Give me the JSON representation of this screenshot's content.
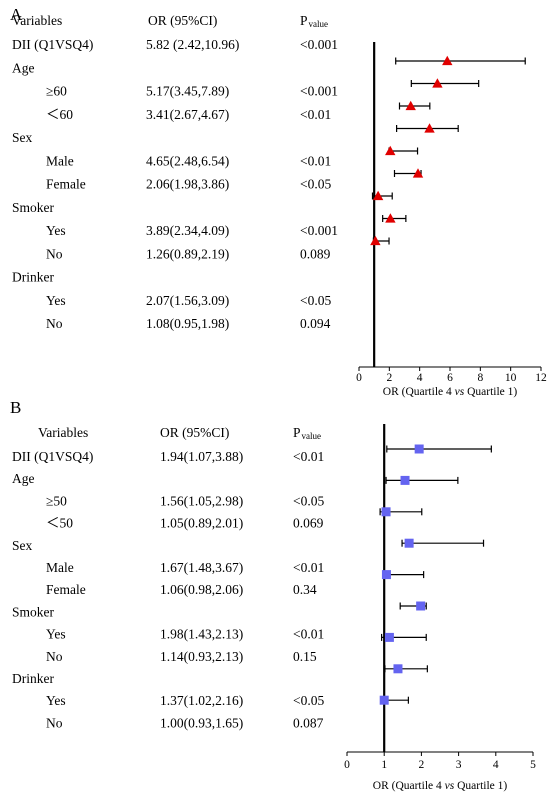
{
  "chart_data": [
    {
      "type": "forest",
      "panel_label": "A",
      "headers": {
        "variables": "Variables",
        "or": "OR (95%CI)",
        "p_main": "P",
        "p_sub": "value"
      },
      "xlabel": {
        "pre": "OR (Quartile 4 ",
        "vs": "vs",
        "post": " Quartile 1)"
      },
      "xlim": [
        0,
        12
      ],
      "xticks": [
        0,
        2,
        4,
        6,
        8,
        10,
        12
      ],
      "reference_line": 1,
      "marker": "triangle",
      "marker_color": "#e00000",
      "rows": [
        {
          "label": "DII (Q1VSQ4)",
          "indent": 0,
          "or_text": "5.82 (2.42,10.96)",
          "p": "<0.001",
          "or": 5.82,
          "lo": 2.42,
          "hi": 10.96
        },
        {
          "label": "Age",
          "indent": 0,
          "or_text": "",
          "p": ""
        },
        {
          "label": "≥60",
          "indent": 1,
          "or_text": "5.17(3.45,7.89)",
          "p": "<0.001",
          "or": 5.17,
          "lo": 3.45,
          "hi": 7.89
        },
        {
          "label": "＜60",
          "indent": 1,
          "or_text": "3.41(2.67,4.67)",
          "p": "<0.01",
          "or": 3.41,
          "lo": 2.67,
          "hi": 4.67
        },
        {
          "label": "Sex",
          "indent": 0,
          "or_text": "",
          "p": ""
        },
        {
          "label": "Male",
          "indent": 1,
          "or_text": "4.65(2.48,6.54)",
          "p": "<0.01",
          "or": 4.65,
          "lo": 2.48,
          "hi": 6.54
        },
        {
          "label": "Female",
          "indent": 1,
          "or_text": "2.06(1.98,3.86)",
          "p": "<0.05",
          "or": 2.06,
          "lo": 1.98,
          "hi": 3.86
        },
        {
          "label": "Smoker",
          "indent": 0,
          "or_text": "",
          "p": ""
        },
        {
          "label": "Yes",
          "indent": 1,
          "or_text": "3.89(2.34,4.09)",
          "p": "<0.001",
          "or": 3.89,
          "lo": 2.34,
          "hi": 4.09
        },
        {
          "label": "No",
          "indent": 1,
          "or_text": "1.26(0.89,2.19)",
          "p": "0.089",
          "or": 1.26,
          "lo": 0.89,
          "hi": 2.19
        },
        {
          "label": "Drinker",
          "indent": 0,
          "or_text": "",
          "p": ""
        },
        {
          "label": "Yes",
          "indent": 1,
          "or_text": "2.07(1.56,3.09)",
          "p": "<0.05",
          "or": 2.07,
          "lo": 1.56,
          "hi": 3.09
        },
        {
          "label": "No",
          "indent": 1,
          "or_text": "1.08(0.95,1.98)",
          "p": "0.094",
          "or": 1.08,
          "lo": 0.95,
          "hi": 1.98
        }
      ]
    },
    {
      "type": "forest",
      "panel_label": "B",
      "headers": {
        "variables": "Variables",
        "or": "OR (95%CI)",
        "p_main": "P",
        "p_sub": "value"
      },
      "xlabel": {
        "pre": "OR (Quartile 4 ",
        "vs": "vs",
        "post": " Quartile 1)"
      },
      "xlim": [
        0,
        5
      ],
      "xticks": [
        0,
        1,
        2,
        3,
        4,
        5
      ],
      "reference_line": 1,
      "marker": "square",
      "marker_color": "#6464f0",
      "rows": [
        {
          "label": "DII (Q1VSQ4)",
          "indent": 0,
          "or_text": "1.94(1.07,3.88)",
          "p": "<0.01",
          "or": 1.94,
          "lo": 1.07,
          "hi": 3.88
        },
        {
          "label": "Age",
          "indent": 0,
          "or_text": "",
          "p": ""
        },
        {
          "label": "≥50",
          "indent": 1,
          "or_text": "1.56(1.05,2.98)",
          "p": "<0.05",
          "or": 1.56,
          "lo": 1.05,
          "hi": 2.98
        },
        {
          "label": "＜50",
          "indent": 1,
          "or_text": "1.05(0.89,2.01)",
          "p": "0.069",
          "or": 1.05,
          "lo": 0.89,
          "hi": 2.01
        },
        {
          "label": "Sex",
          "indent": 0,
          "or_text": "",
          "p": ""
        },
        {
          "label": "Male",
          "indent": 1,
          "or_text": "1.67(1.48,3.67)",
          "p": "<0.01",
          "or": 1.67,
          "lo": 1.48,
          "hi": 3.67
        },
        {
          "label": "Female",
          "indent": 1,
          "or_text": "1.06(0.98,2.06)",
          "p": "0.34",
          "or": 1.06,
          "lo": 0.98,
          "hi": 2.06
        },
        {
          "label": "Smoker",
          "indent": 0,
          "or_text": "",
          "p": ""
        },
        {
          "label": "Yes",
          "indent": 1,
          "or_text": "1.98(1.43,2.13)",
          "p": "<0.01",
          "or": 1.98,
          "lo": 1.43,
          "hi": 2.13
        },
        {
          "label": "No",
          "indent": 1,
          "or_text": "1.14(0.93,2.13)",
          "p": "0.15",
          "or": 1.14,
          "lo": 0.93,
          "hi": 2.13
        },
        {
          "label": "Drinker",
          "indent": 0,
          "or_text": "",
          "p": ""
        },
        {
          "label": "Yes",
          "indent": 1,
          "or_text": "1.37(1.02,2.16)",
          "p": "<0.05",
          "or": 1.37,
          "lo": 1.02,
          "hi": 2.16
        },
        {
          "label": "No",
          "indent": 1,
          "or_text": "1.00(0.93,1.65)",
          "p": "0.087",
          "or": 1.0,
          "lo": 0.93,
          "hi": 1.65
        }
      ]
    }
  ]
}
